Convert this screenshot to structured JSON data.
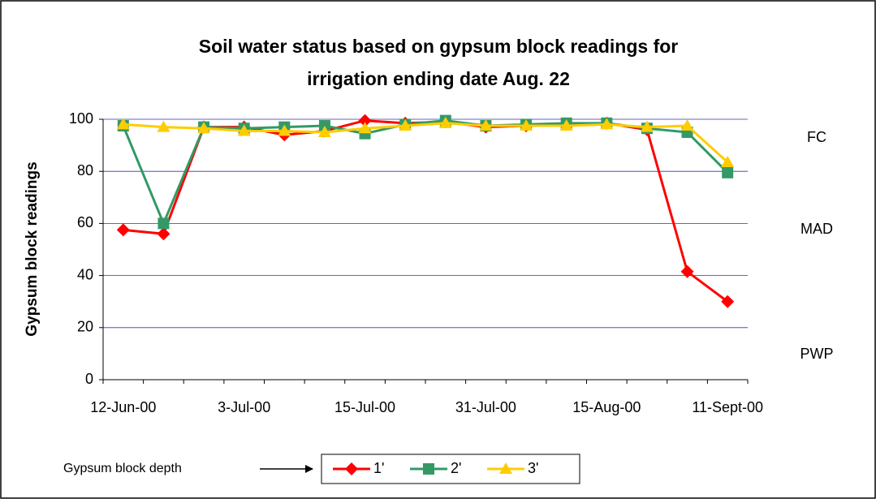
{
  "chart_data": {
    "type": "line",
    "title": [
      "Soil water status based on gypsum block readings for",
      "irrigation ending date Aug. 22"
    ],
    "y_label": "Gypsum block readings",
    "categories": [
      "12-Jun-00",
      null,
      null,
      "3-Jul-00",
      null,
      null,
      "15-Jul-00",
      null,
      null,
      "31-Jul-00",
      null,
      null,
      "15-Aug-00",
      null,
      null,
      "11-Sept-00"
    ],
    "series": [
      {
        "name": "1'",
        "color": "#ff0000",
        "marker": "diamond",
        "values": [
          57.5,
          56,
          97,
          97,
          94,
          95.5,
          99.5,
          98.5,
          99,
          97,
          97.5,
          98,
          98.5,
          96,
          41.5,
          30
        ]
      },
      {
        "name": "2'",
        "color": "#339966",
        "marker": "square",
        "values": [
          97.5,
          60,
          97,
          96.5,
          97,
          97.5,
          94.5,
          98,
          99.5,
          97.5,
          98,
          98.5,
          98.5,
          96.5,
          95,
          79.5
        ]
      },
      {
        "name": "3'",
        "color": "#ffcc00",
        "marker": "triangle",
        "values": [
          98,
          97,
          96.5,
          95.5,
          95.5,
          95,
          96.5,
          97.5,
          98.5,
          97.5,
          97.5,
          97.5,
          98,
          97,
          97.5,
          83.5
        ]
      }
    ],
    "ylim": [
      0,
      100
    ],
    "yticks": [
      0,
      20,
      40,
      60,
      80,
      100
    ],
    "grid": true,
    "annotations": [
      "FC",
      "MAD",
      "PWP"
    ],
    "legend_title": "Gypsum block depth",
    "legend": "bottom"
  }
}
